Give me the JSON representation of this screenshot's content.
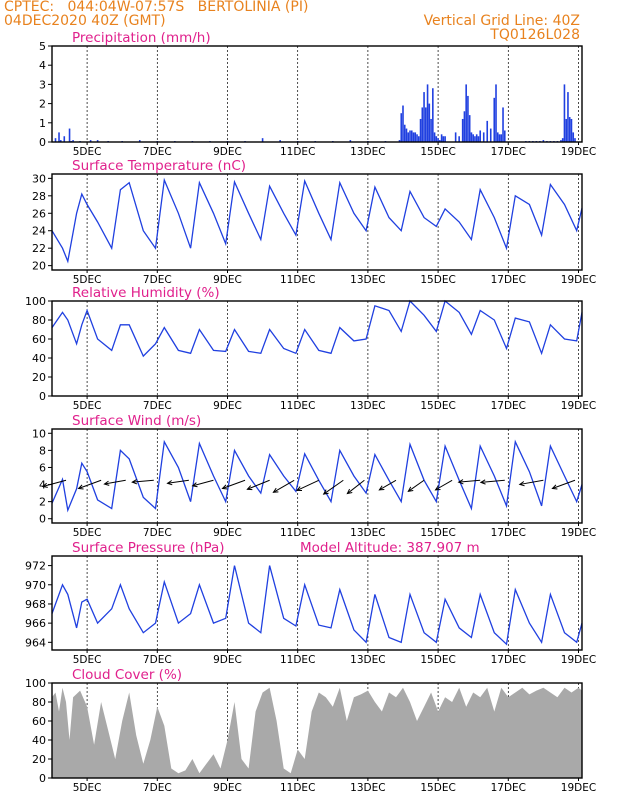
{
  "header": {
    "line1_left": "CPTEC:   044:04W-07:57S   BERTOLINIA (PI)",
    "line2_left": "04DEC2020 40Z (GMT)",
    "line2_right": "Vertical Grid Line: 40Z",
    "line3_right": "TQ0126L028"
  },
  "colors": {
    "header": "#e8821e",
    "panel_title": "#e0208c",
    "series": "#2040e0",
    "cloud": "#a9a9a9",
    "arrow": "#000000"
  },
  "x_axis": {
    "ticks": [
      "5DEC",
      "7DEC",
      "9DEC",
      "11DEC",
      "13DEC",
      "15DEC",
      "17DEC",
      "19DEC"
    ],
    "tick_positions_days": [
      1,
      3,
      5,
      7,
      9,
      11,
      13,
      15
    ],
    "range_days": [
      0,
      15.1
    ]
  },
  "chart_data": [
    {
      "type": "bar",
      "title": "Precipitation (mm/h)",
      "ylim": [
        0,
        5
      ],
      "yticks": [
        0,
        1,
        2,
        3,
        4,
        5
      ],
      "x": [
        0.1,
        0.2,
        0.25,
        0.35,
        0.5,
        0.55,
        0.6,
        0.8,
        1.1,
        1.3,
        1.6,
        2.0,
        2.5,
        3.0,
        3.5,
        4.0,
        4.5,
        5.0,
        5.5,
        6.0,
        6.5,
        7.0,
        7.5,
        8.0,
        8.5,
        9.0,
        9.5,
        9.9,
        9.95,
        10.0,
        10.05,
        10.1,
        10.15,
        10.2,
        10.25,
        10.3,
        10.35,
        10.4,
        10.45,
        10.5,
        10.55,
        10.6,
        10.65,
        10.7,
        10.75,
        10.8,
        10.85,
        10.9,
        10.95,
        11.0,
        11.05,
        11.1,
        11.15,
        11.2,
        11.5,
        11.6,
        11.7,
        11.75,
        11.8,
        11.85,
        11.9,
        11.95,
        12.0,
        12.05,
        12.1,
        12.15,
        12.2,
        12.3,
        12.4,
        12.5,
        12.6,
        12.65,
        12.7,
        12.75,
        12.8,
        12.85,
        12.9,
        13.5,
        13.6,
        13.7,
        13.8,
        13.9,
        14.0,
        14.1,
        14.2,
        14.3,
        14.4,
        14.5,
        14.55,
        14.6,
        14.65,
        14.7,
        14.75,
        14.8,
        14.85,
        14.9
      ],
      "values": [
        0.2,
        0.5,
        0.1,
        0.3,
        0.7,
        0.05,
        0.1,
        0.05,
        0.1,
        0.1,
        0.05,
        0.05,
        0.1,
        0.05,
        0.05,
        0.05,
        0.05,
        0.05,
        0.05,
        0.2,
        0.1,
        0.05,
        0.05,
        0.05,
        0.1,
        0.05,
        0.05,
        0.1,
        1.5,
        1.9,
        0.9,
        0.7,
        0.5,
        0.6,
        0.6,
        0.5,
        0.5,
        0.4,
        0.3,
        1.2,
        1.8,
        2.6,
        1.8,
        3.0,
        2.0,
        1.2,
        2.8,
        0.5,
        0.3,
        0.2,
        0.1,
        0.4,
        0.3,
        0.3,
        0.5,
        0.3,
        1.2,
        1.6,
        3.0,
        2.4,
        1.4,
        0.5,
        0.4,
        0.3,
        0.4,
        0.3,
        0.6,
        0.5,
        1.1,
        0.7,
        2.3,
        3.0,
        0.5,
        0.4,
        0.4,
        1.8,
        0.6,
        0.05,
        0.05,
        0.05,
        0.05,
        0.05,
        0.1,
        0.05,
        0.05,
        0.05,
        0.05,
        0.1,
        0.2,
        3.0,
        1.2,
        2.6,
        1.3,
        1.2,
        0.5,
        0.2
      ]
    },
    {
      "type": "line",
      "title": "Surface Temperature (nC)",
      "ylim": [
        19.5,
        30.5
      ],
      "yticks": [
        20,
        22,
        24,
        26,
        28,
        30
      ],
      "x": [
        0,
        0.3,
        0.45,
        0.7,
        0.85,
        1.0,
        1.3,
        1.7,
        1.95,
        2.2,
        2.6,
        2.95,
        3.2,
        3.6,
        3.95,
        4.2,
        4.6,
        4.95,
        5.2,
        5.6,
        5.95,
        6.2,
        6.6,
        6.95,
        7.2,
        7.6,
        7.95,
        8.2,
        8.6,
        8.95,
        9.2,
        9.6,
        9.95,
        10.2,
        10.6,
        10.95,
        11.2,
        11.6,
        11.95,
        12.2,
        12.6,
        12.95,
        13.2,
        13.6,
        13.95,
        14.2,
        14.6,
        14.95,
        15.1
      ],
      "y": [
        24,
        22,
        20.5,
        26,
        28.2,
        27,
        25,
        22,
        28.7,
        29.5,
        24,
        22,
        29.8,
        26,
        22,
        29.5,
        26,
        22.5,
        29.6,
        26,
        23,
        29.1,
        26,
        23.5,
        29.7,
        26,
        23,
        29.5,
        26,
        24,
        29,
        25.5,
        24,
        28.5,
        25.5,
        24.5,
        26.5,
        25,
        23,
        28.7,
        25.5,
        22,
        28,
        27,
        23.5,
        29.3,
        27,
        24,
        26.6
      ]
    },
    {
      "type": "line",
      "title": "Relative Humidity (%)",
      "ylim": [
        0,
        100
      ],
      "yticks": [
        0,
        20,
        40,
        60,
        80,
        100
      ],
      "x": [
        0,
        0.3,
        0.45,
        0.7,
        0.85,
        1.0,
        1.3,
        1.7,
        1.95,
        2.2,
        2.6,
        2.95,
        3.2,
        3.6,
        3.95,
        4.2,
        4.6,
        4.95,
        5.2,
        5.6,
        5.95,
        6.2,
        6.6,
        6.95,
        7.2,
        7.6,
        7.95,
        8.2,
        8.6,
        8.95,
        9.2,
        9.6,
        9.95,
        10.2,
        10.6,
        10.95,
        11.2,
        11.6,
        11.95,
        12.2,
        12.6,
        12.95,
        13.2,
        13.6,
        13.95,
        14.2,
        14.6,
        14.95,
        15.1
      ],
      "y": [
        72,
        88,
        80,
        55,
        75,
        90,
        60,
        48,
        75,
        75,
        42,
        55,
        72,
        48,
        45,
        70,
        48,
        47,
        70,
        47,
        45,
        70,
        50,
        45,
        70,
        48,
        45,
        72,
        58,
        60,
        95,
        90,
        68,
        100,
        85,
        68,
        100,
        88,
        65,
        90,
        80,
        50,
        82,
        78,
        45,
        75,
        60,
        58,
        88
      ]
    },
    {
      "type": "line",
      "title": "Surface Wind (m/s)",
      "ylim": [
        -0.5,
        10.5
      ],
      "yticks": [
        0,
        2,
        4,
        6,
        8,
        10
      ],
      "x": [
        0,
        0.3,
        0.45,
        0.7,
        0.85,
        1.0,
        1.3,
        1.7,
        1.95,
        2.2,
        2.6,
        2.95,
        3.2,
        3.6,
        3.95,
        4.2,
        4.6,
        4.95,
        5.2,
        5.6,
        5.95,
        6.2,
        6.6,
        6.95,
        7.2,
        7.6,
        7.95,
        8.2,
        8.6,
        8.95,
        9.2,
        9.6,
        9.95,
        10.2,
        10.6,
        10.95,
        11.2,
        11.6,
        11.95,
        12.2,
        12.6,
        12.95,
        13.2,
        13.6,
        13.95,
        14.2,
        14.6,
        14.95,
        15.1
      ],
      "y": [
        1.8,
        4.6,
        1,
        3.5,
        6.5,
        5.5,
        2.2,
        1.2,
        8,
        7,
        2.5,
        1.2,
        9,
        6,
        2,
        8.8,
        5,
        2,
        8,
        5,
        3,
        7.5,
        5,
        3.2,
        7.6,
        4.5,
        2,
        8,
        5,
        3,
        7.5,
        4.5,
        2,
        8.7,
        4.5,
        2,
        8.5,
        4.5,
        1.2,
        8.5,
        5,
        1.5,
        9,
        5.5,
        1.5,
        8.5,
        5,
        2,
        4
      ],
      "wind_vectors": {
        "x": [
          0.4,
          1.4,
          2.1,
          2.9,
          3.9,
          4.6,
          5.5,
          6.2,
          6.9,
          7.6,
          8.3,
          8.9,
          9.8,
          10.6,
          11.4,
          12.2,
          12.9,
          14.0,
          14.9
        ],
        "speed": [
          5,
          5,
          4.5,
          4.5,
          4.5,
          4.5,
          5,
          5,
          5,
          5,
          5,
          4.5,
          4,
          4,
          4,
          4.5,
          5,
          5,
          5
        ],
        "dir_deg": [
          255,
          250,
          260,
          265,
          262,
          255,
          250,
          248,
          240,
          245,
          235,
          232,
          240,
          235,
          240,
          265,
          265,
          260,
          250
        ]
      }
    },
    {
      "type": "line",
      "title": "Surface Pressure (hPa)",
      "annotation": "Model Altitude: 387.907 m",
      "ylim": [
        963.2,
        973
      ],
      "yticks": [
        964,
        966,
        968,
        970,
        972
      ],
      "x": [
        0,
        0.3,
        0.45,
        0.7,
        0.85,
        1.0,
        1.3,
        1.7,
        1.95,
        2.2,
        2.6,
        2.95,
        3.2,
        3.6,
        3.95,
        4.2,
        4.6,
        4.95,
        5.2,
        5.6,
        5.95,
        6.2,
        6.6,
        6.95,
        7.2,
        7.6,
        7.95,
        8.2,
        8.6,
        8.95,
        9.2,
        9.6,
        9.95,
        10.2,
        10.6,
        10.95,
        11.2,
        11.6,
        11.95,
        12.2,
        12.6,
        12.95,
        13.2,
        13.6,
        13.95,
        14.2,
        14.6,
        14.95,
        15.1
      ],
      "y": [
        967,
        970,
        969,
        965.5,
        968.2,
        968.5,
        966,
        967.5,
        970,
        967.5,
        965,
        966,
        970.3,
        966,
        967,
        970,
        966,
        966.5,
        972,
        966,
        965,
        972,
        966.5,
        965.7,
        970,
        965.8,
        965.5,
        969.5,
        965.3,
        964,
        969,
        964.5,
        964,
        969,
        965,
        964,
        968.5,
        965.5,
        964.5,
        969,
        965,
        963.8,
        969.5,
        966,
        964,
        969,
        965,
        964,
        966
      ]
    },
    {
      "type": "area",
      "title": "Cloud Cover (%)",
      "ylim": [
        0,
        100
      ],
      "yticks": [
        0,
        20,
        40,
        60,
        80,
        100
      ],
      "x": [
        0,
        0.1,
        0.2,
        0.3,
        0.4,
        0.5,
        0.6,
        0.8,
        1.0,
        1.2,
        1.4,
        1.6,
        1.8,
        2.0,
        2.2,
        2.4,
        2.6,
        2.8,
        3.0,
        3.2,
        3.4,
        3.6,
        3.8,
        4.0,
        4.2,
        4.4,
        4.6,
        4.8,
        5.0,
        5.2,
        5.4,
        5.6,
        5.8,
        6.0,
        6.2,
        6.4,
        6.6,
        6.8,
        7.0,
        7.2,
        7.4,
        7.6,
        7.8,
        8.0,
        8.2,
        8.4,
        8.6,
        8.8,
        9.0,
        9.2,
        9.4,
        9.6,
        9.8,
        10.0,
        10.2,
        10.4,
        10.6,
        10.8,
        11.0,
        11.2,
        11.4,
        11.6,
        11.8,
        12.0,
        12.2,
        12.4,
        12.6,
        12.8,
        13.0,
        13.2,
        13.4,
        13.6,
        13.8,
        14.0,
        14.2,
        14.4,
        14.6,
        14.8,
        15.0,
        15.1
      ],
      "values": [
        85,
        90,
        70,
        95,
        80,
        40,
        85,
        92,
        75,
        35,
        80,
        50,
        20,
        60,
        90,
        45,
        15,
        40,
        75,
        55,
        10,
        5,
        8,
        20,
        5,
        15,
        25,
        10,
        40,
        80,
        20,
        10,
        70,
        90,
        95,
        60,
        10,
        5,
        30,
        20,
        70,
        90,
        85,
        75,
        95,
        60,
        85,
        88,
        92,
        80,
        70,
        90,
        85,
        95,
        80,
        60,
        75,
        90,
        70,
        85,
        80,
        95,
        75,
        90,
        85,
        95,
        70,
        95,
        85,
        90,
        95,
        88,
        92,
        95,
        90,
        85,
        95,
        90,
        95,
        92
      ]
    }
  ]
}
